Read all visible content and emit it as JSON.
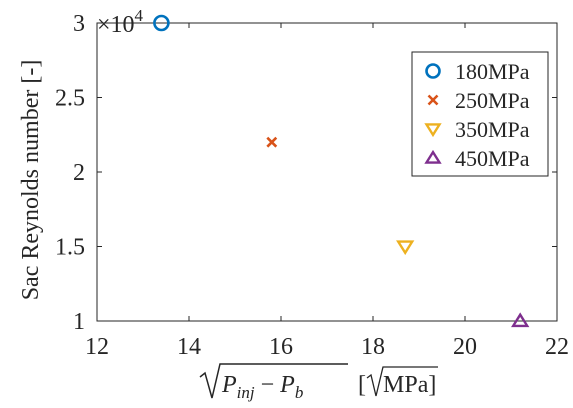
{
  "chart_data": {
    "type": "scatter",
    "title": "",
    "xlabel": "√(P_inj − P_b) [√MPa]",
    "ylabel": "Sac Reynolds number [-]",
    "xlim": [
      12,
      22
    ],
    "ylim": [
      10000,
      30000
    ],
    "xticks": [
      12,
      14,
      16,
      18,
      20,
      22
    ],
    "yticks": [
      10000,
      15000,
      20000,
      25000,
      30000
    ],
    "ytick_labels": [
      "1",
      "1.5",
      "2",
      "2.5",
      "3"
    ],
    "y_multiplier": "×10^4",
    "grid": false,
    "legend_position": "top-right",
    "series": [
      {
        "name": "180MPa",
        "marker": "circle",
        "color": "#0072BD",
        "x": [
          13.4
        ],
        "y": [
          30000
        ]
      },
      {
        "name": "250MPa",
        "marker": "x",
        "color": "#D95319",
        "x": [
          15.8
        ],
        "y": [
          22000
        ]
      },
      {
        "name": "350MPa",
        "marker": "triangle-down",
        "color": "#EDB120",
        "x": [
          18.7
        ],
        "y": [
          15000
        ]
      },
      {
        "name": "450MPa",
        "marker": "triangle-up",
        "color": "#7E2F8E",
        "x": [
          21.2
        ],
        "y": [
          10000
        ]
      }
    ]
  }
}
